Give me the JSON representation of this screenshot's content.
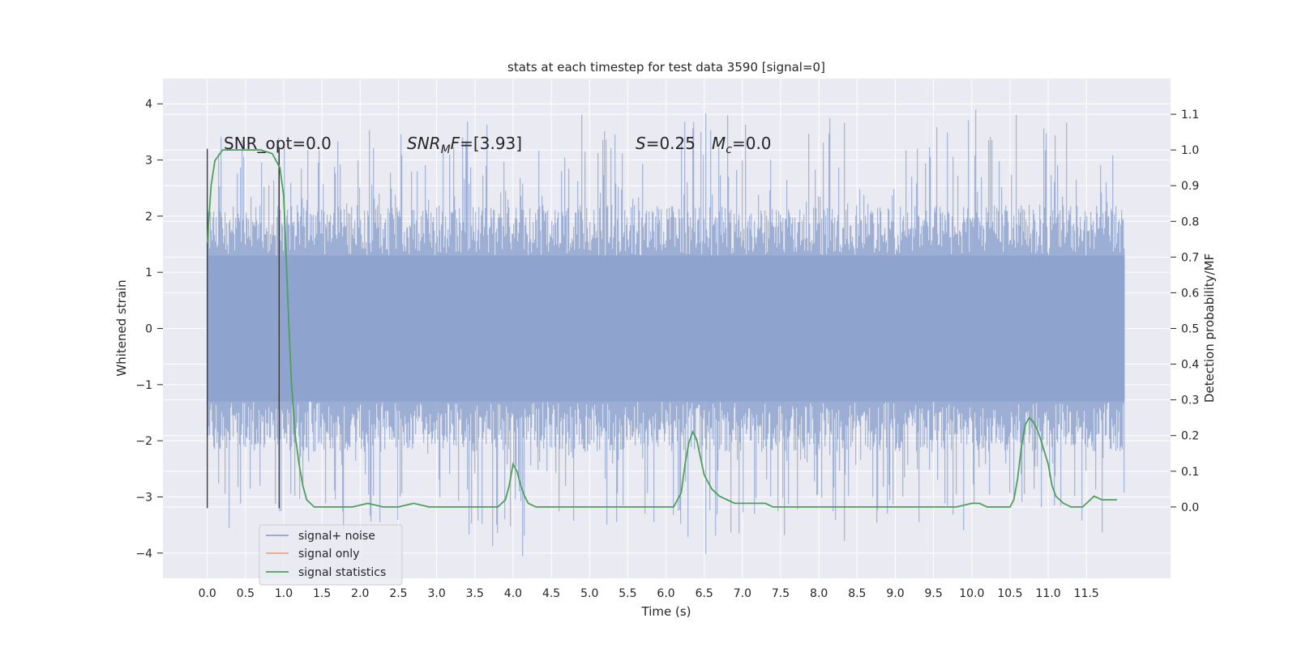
{
  "chart_data": {
    "type": "line",
    "title": "stats at each timestep for test data 3590 [signal=0]",
    "xlabel": "Time (s)",
    "ylabel": "Whitened strain",
    "ylabel_right": "Detection probability/MF",
    "xlim": [
      -0.58,
      12.6
    ],
    "ylim": [
      -4.45,
      4.45
    ],
    "ylim_right": [
      -0.2,
      1.2
    ],
    "grid": true,
    "legend_position": "lower-left",
    "x_ticks": [
      "0.0",
      "0.5",
      "1.0",
      "1.5",
      "2.0",
      "2.5",
      "3.0",
      "3.5",
      "4.0",
      "4.5",
      "5.0",
      "5.5",
      "6.0",
      "6.5",
      "7.0",
      "7.5",
      "8.0",
      "8.5",
      "9.0",
      "9.5",
      "10.0",
      "10.5",
      "11.0",
      "11.5"
    ],
    "y_ticks_left": [
      "4",
      "3",
      "2",
      "1",
      "0",
      "−1",
      "−2",
      "−3",
      "−4"
    ],
    "y_ticks_right": [
      "1.1",
      "1.0",
      "0.9",
      "0.8",
      "0.7",
      "0.6",
      "0.5",
      "0.4",
      "0.3",
      "0.2",
      "0.1",
      "0.0"
    ],
    "annotations": {
      "snr_opt": "SNR_opt=0.0",
      "snr_mf_symbol": "SNR",
      "snr_mf_sub": "M",
      "snr_mf_f": "F",
      "snr_mf_value": "=[3.93]",
      "s_symbol": "S",
      "s_value": "=0.25",
      "mc_symbol": "M",
      "mc_sub": "c",
      "mc_value": "=0.0"
    },
    "vertical_lines_x": [
      0.0,
      0.94
    ],
    "noise": {
      "name": "signal+ noise",
      "color": "#8fa3cf",
      "x_range": [
        0.0,
        12.0
      ],
      "amplitude_typical": 1.3,
      "amplitude_max": 4.1
    },
    "series": [
      {
        "name": "signal+ noise",
        "color": "#8fa3cf"
      },
      {
        "name": "signal only",
        "color": "#e8a98a"
      },
      {
        "name": "signal statistics",
        "color": "#4ca05a",
        "x": [
          0.0,
          0.05,
          0.1,
          0.2,
          0.3,
          0.5,
          0.7,
          0.85,
          0.95,
          1.0,
          1.05,
          1.1,
          1.15,
          1.2,
          1.25,
          1.3,
          1.4,
          1.6,
          1.9,
          2.1,
          2.3,
          2.5,
          2.7,
          2.9,
          3.2,
          3.5,
          3.8,
          3.9,
          3.95,
          4.0,
          4.05,
          4.1,
          4.15,
          4.2,
          4.3,
          4.5,
          4.8,
          5.0,
          5.3,
          5.6,
          5.9,
          6.1,
          6.2,
          6.25,
          6.3,
          6.35,
          6.4,
          6.45,
          6.5,
          6.6,
          6.7,
          6.8,
          6.9,
          7.0,
          7.2,
          7.3,
          7.4,
          7.6,
          8.0,
          8.5,
          9.0,
          9.5,
          9.8,
          10.0,
          10.1,
          10.2,
          10.4,
          10.5,
          10.55,
          10.6,
          10.65,
          10.7,
          10.75,
          10.8,
          10.85,
          10.9,
          11.0,
          11.05,
          11.1,
          11.2,
          11.3,
          11.4,
          11.45,
          11.5,
          11.6,
          11.7,
          11.8,
          11.9
        ],
        "y": [
          0.74,
          0.9,
          0.97,
          1.0,
          1.0,
          1.0,
          1.0,
          0.99,
          0.95,
          0.87,
          0.6,
          0.35,
          0.2,
          0.12,
          0.06,
          0.02,
          0.0,
          0.0,
          0.0,
          0.01,
          0.0,
          0.0,
          0.01,
          0.0,
          0.0,
          0.0,
          0.0,
          0.02,
          0.06,
          0.12,
          0.1,
          0.06,
          0.03,
          0.01,
          0.0,
          0.0,
          0.0,
          0.0,
          0.0,
          0.0,
          0.0,
          0.0,
          0.04,
          0.12,
          0.18,
          0.21,
          0.19,
          0.14,
          0.09,
          0.05,
          0.03,
          0.02,
          0.01,
          0.01,
          0.01,
          0.01,
          0.0,
          0.0,
          0.0,
          0.0,
          0.0,
          0.0,
          0.0,
          0.01,
          0.01,
          0.0,
          0.0,
          0.0,
          0.02,
          0.08,
          0.17,
          0.23,
          0.25,
          0.24,
          0.22,
          0.19,
          0.12,
          0.06,
          0.03,
          0.01,
          0.0,
          0.0,
          0.0,
          0.01,
          0.03,
          0.02,
          0.02,
          0.02
        ]
      }
    ]
  }
}
